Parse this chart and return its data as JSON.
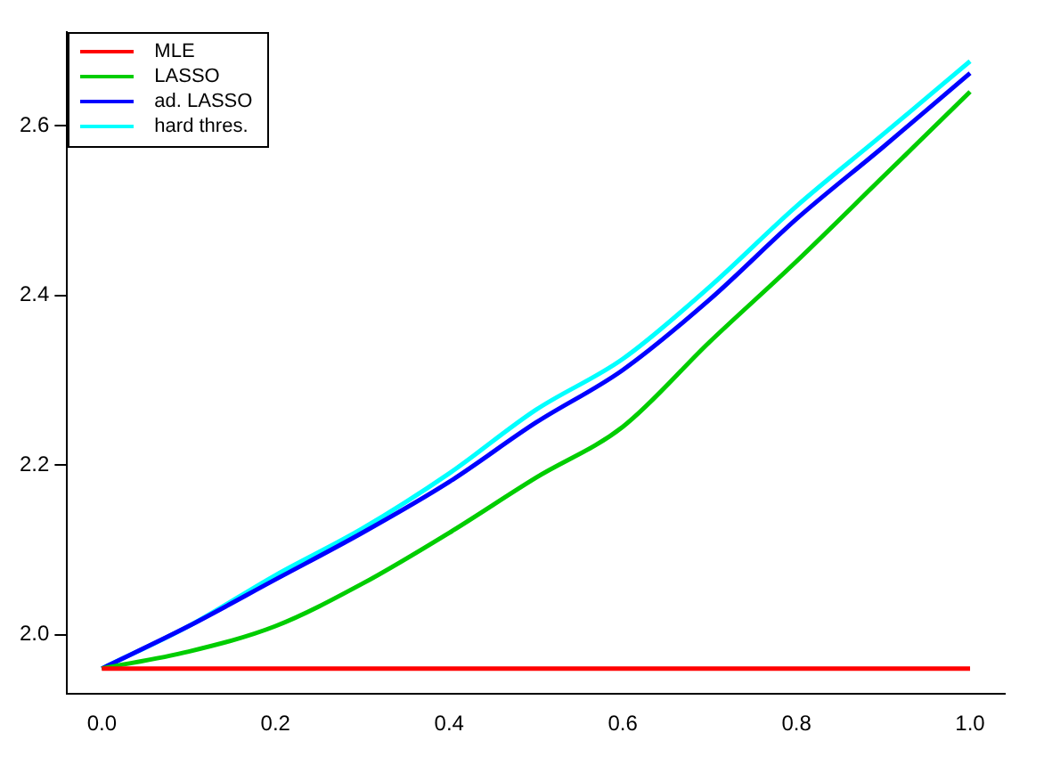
{
  "chart_data": {
    "type": "line",
    "x": [
      0,
      0.1,
      0.2,
      0.3,
      0.4,
      0.5,
      0.6,
      0.7,
      0.8,
      0.9,
      1.0
    ],
    "series": [
      {
        "name": "MLE",
        "color": "#ff0000",
        "values": [
          1.96,
          1.96,
          1.96,
          1.96,
          1.96,
          1.96,
          1.96,
          1.96,
          1.96,
          1.96,
          1.96
        ]
      },
      {
        "name": "LASSO",
        "color": "#00cd00",
        "values": [
          1.96,
          1.98,
          2.01,
          2.06,
          2.12,
          2.185,
          2.245,
          2.345,
          2.44,
          2.54,
          2.64
        ]
      },
      {
        "name": "ad. LASSO",
        "color": "#0000ff",
        "values": [
          1.96,
          2.01,
          2.065,
          2.12,
          2.18,
          2.25,
          2.312,
          2.395,
          2.49,
          2.575,
          2.662
        ]
      },
      {
        "name": "hard thres.",
        "color": "#00ffff",
        "values": [
          1.96,
          2.01,
          2.07,
          2.125,
          2.19,
          2.265,
          2.325,
          2.41,
          2.505,
          2.59,
          2.676
        ]
      }
    ],
    "xlim": [
      -0.04,
      1.04
    ],
    "xticks": [
      {
        "value": 0,
        "label": "0.0"
      },
      {
        "value": 0.2,
        "label": "0.2"
      },
      {
        "value": 0.4,
        "label": "0.4"
      },
      {
        "value": 0.6,
        "label": "0.6"
      },
      {
        "value": 0.8,
        "label": "0.8"
      },
      {
        "value": 1,
        "label": "1.0"
      }
    ],
    "ylim": [
      1.93,
      2.71
    ],
    "yticks": [
      {
        "value": 2,
        "label": "2.0"
      },
      {
        "value": 2.2,
        "label": "2.2"
      },
      {
        "value": 2.4,
        "label": "2.4"
      },
      {
        "value": 2.6,
        "label": "2.6"
      }
    ],
    "grid": false,
    "legend": "top left",
    "marker": "none",
    "line_style": "solid"
  }
}
